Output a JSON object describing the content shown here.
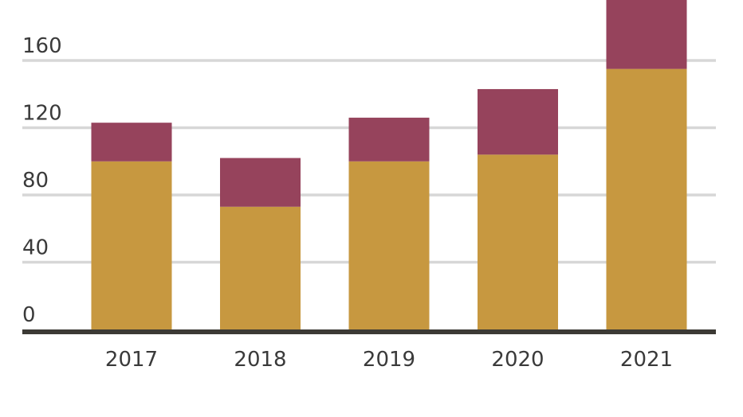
{
  "chart_data": {
    "type": "bar",
    "stacked": true,
    "categories": [
      "2017",
      "2018",
      "2019",
      "2020",
      "2021"
    ],
    "series": [
      {
        "values": [
          100,
          73,
          100,
          104,
          155
        ]
      },
      {
        "values": [
          23,
          29,
          26,
          39,
          42
        ]
      }
    ],
    "yticks": [
      0,
      40,
      80,
      120,
      160
    ],
    "ylim": [
      0,
      196
    ],
    "grid": true,
    "legend": "none",
    "colors": {
      "series": [
        "#c79840",
        "#96435c"
      ],
      "grid": "#d7d7d7",
      "baseline": "#3c3a35",
      "text": "#3a3a3a"
    }
  }
}
